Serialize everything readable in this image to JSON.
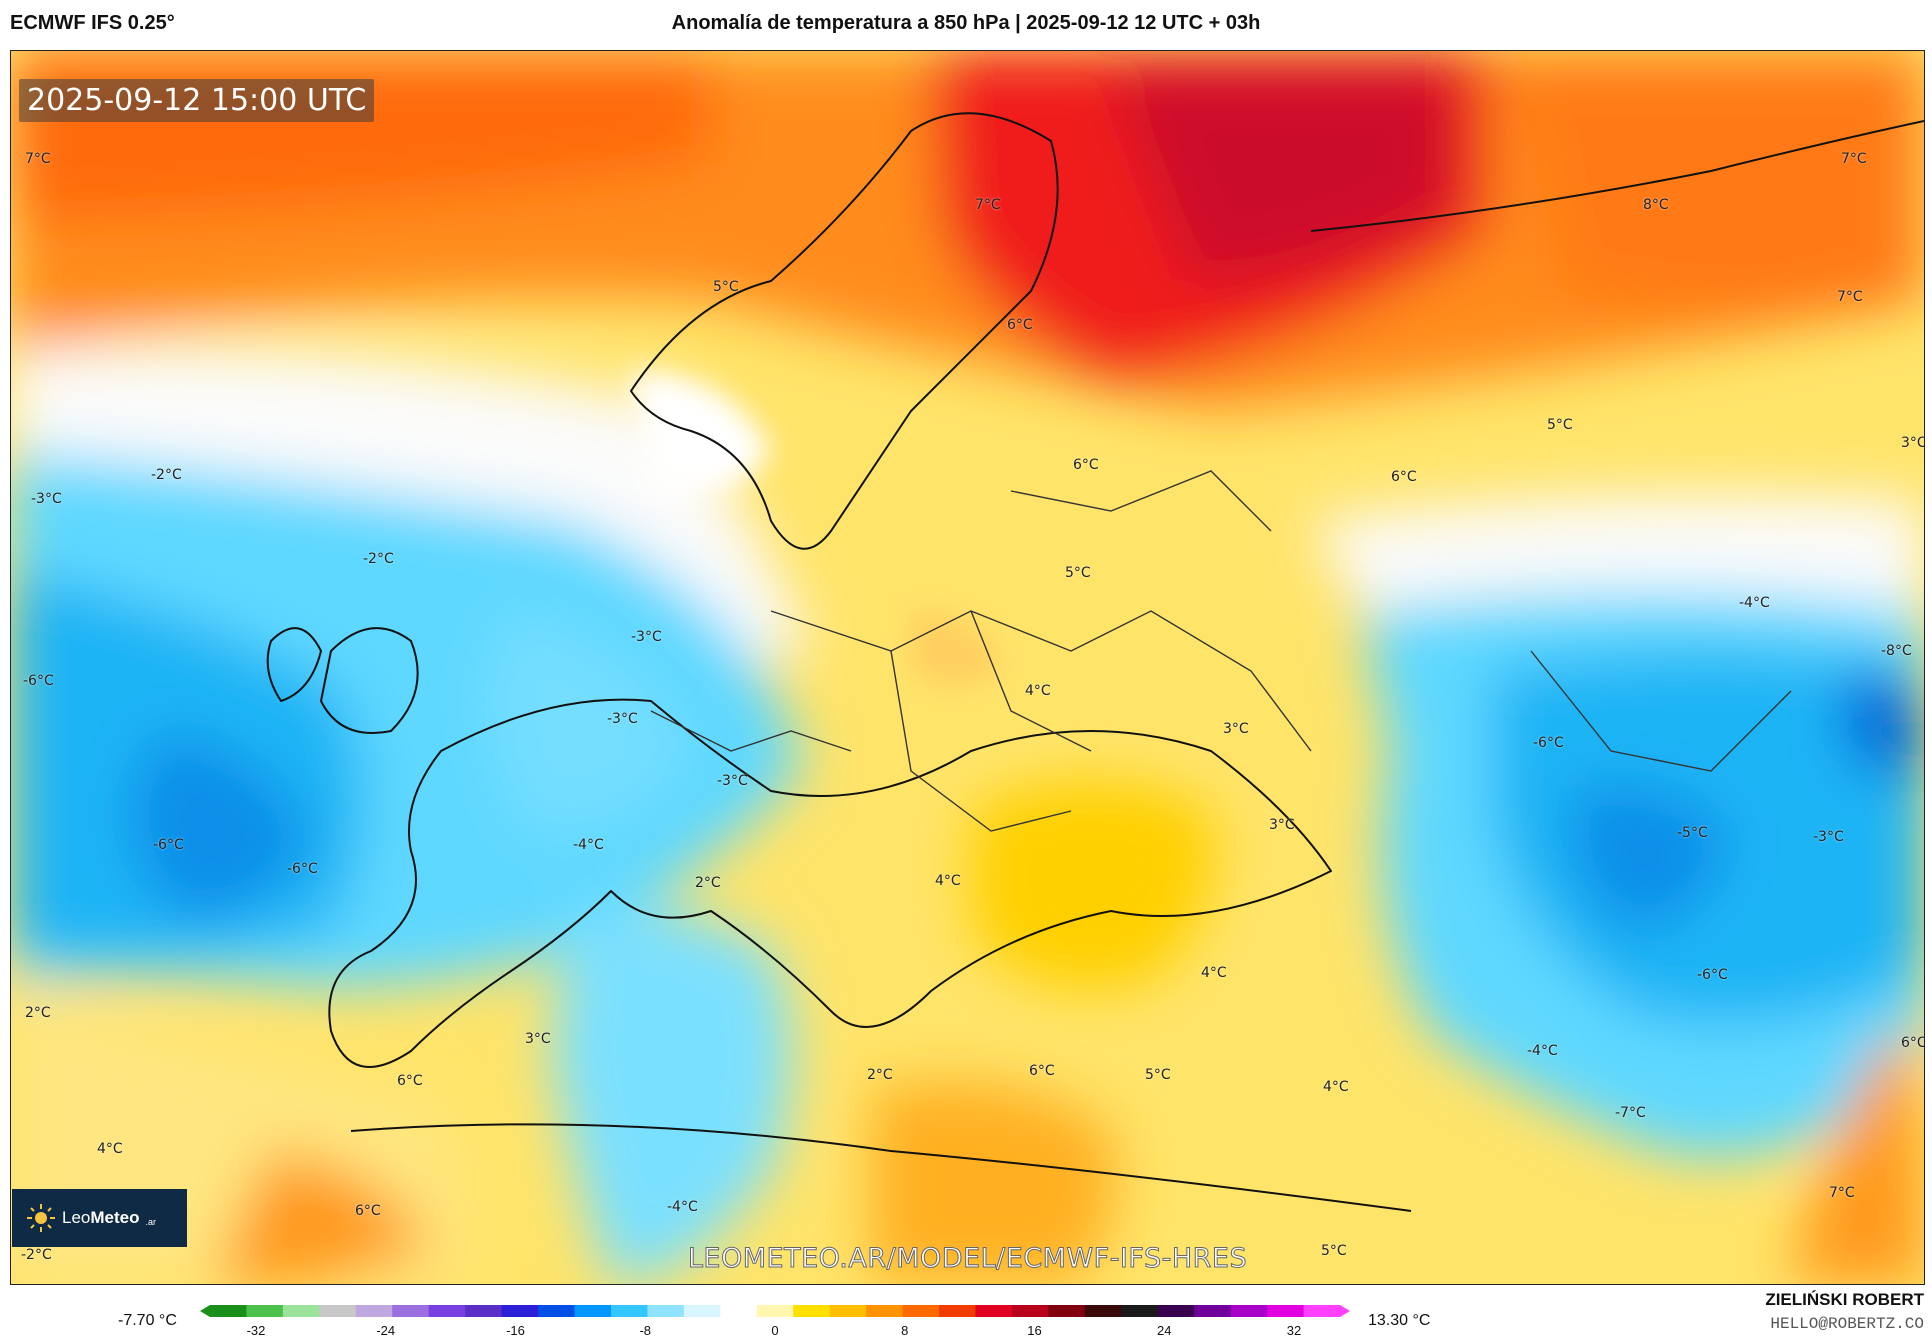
{
  "header": {
    "model": "ECMWF IFS 0.25°",
    "title": "Anomalía de temperatura a 850 hPa | 2025-09-12 12 UTC + 03h"
  },
  "map": {
    "valid_time": "2025-09-12 15:00 UTC",
    "source_url": "LEOMETEO.AR/MODEL/ECMWF-IFS-HRES",
    "labels": [
      {
        "text": "7°C"
      },
      {
        "text": "7°C"
      },
      {
        "text": "8°C"
      },
      {
        "text": "7°C"
      },
      {
        "text": "7°C"
      },
      {
        "text": "5°C"
      },
      {
        "text": "6°C"
      },
      {
        "text": "5°C"
      },
      {
        "text": "6°C"
      },
      {
        "text": "3°C"
      },
      {
        "text": "6°C"
      },
      {
        "text": "-2°C"
      },
      {
        "text": "-3°C"
      },
      {
        "text": "-2°C"
      },
      {
        "text": "-3°C"
      },
      {
        "text": "5°C"
      },
      {
        "text": "-4°C"
      },
      {
        "text": "-8°C"
      },
      {
        "text": "-6°C"
      },
      {
        "text": "4°C"
      },
      {
        "text": "-3°C"
      },
      {
        "text": "3°C"
      },
      {
        "text": "-6°C"
      },
      {
        "text": "-3°C"
      },
      {
        "text": "-6°C"
      },
      {
        "text": "-4°C"
      },
      {
        "text": "-6°C"
      },
      {
        "text": "3°C"
      },
      {
        "text": "-5°C"
      },
      {
        "text": "-3°C"
      },
      {
        "text": "2°C"
      },
      {
        "text": "4°C"
      },
      {
        "text": "4°C"
      },
      {
        "text": "-6°C"
      },
      {
        "text": "2°C"
      },
      {
        "text": "3°C"
      },
      {
        "text": "6°C"
      },
      {
        "text": "6°C"
      },
      {
        "text": "6°C"
      },
      {
        "text": "-4°C"
      },
      {
        "text": "2°C"
      },
      {
        "text": "5°C"
      },
      {
        "text": "4°C"
      },
      {
        "text": "-7°C"
      },
      {
        "text": "4°C"
      },
      {
        "text": "6°C"
      },
      {
        "text": "7°C"
      },
      {
        "text": "-4°C"
      },
      {
        "text": "-2°C"
      },
      {
        "text": "5°C"
      }
    ]
  },
  "brand": {
    "logo_icon": "sun-icon",
    "name_light": "Leo",
    "name_bold": "Meteo",
    "suffix": ".ar"
  },
  "colorbar": {
    "min_label": "-7.70 °C",
    "max_label": "13.30 °C",
    "ticks": [
      "-32",
      "-24",
      "-16",
      "-8",
      "0",
      "8",
      "16",
      "24",
      "32"
    ],
    "colors": [
      "#1a8f1a",
      "#4cc14c",
      "#9be39b",
      "#c8c8c8",
      "#bfa8e0",
      "#9b6fe0",
      "#7a3fe0",
      "#5a2fc8",
      "#2b1fd8",
      "#0050e6",
      "#0096ff",
      "#34c6ff",
      "#8fe3ff",
      "#d8f6ff",
      "#ffffff",
      "#fff7b0",
      "#ffe000",
      "#ffbe00",
      "#ff9200",
      "#ff6a00",
      "#f03c00",
      "#e00020",
      "#b8001c",
      "#800010",
      "#3a0a0a",
      "#1a1a1a",
      "#3a0050",
      "#70009a",
      "#a800c8",
      "#e000e0",
      "#ff40ff"
    ]
  },
  "author": {
    "name": "ZIELIŃSKI ROBERT",
    "email": "HELLO@ROBERTZ.CO"
  }
}
